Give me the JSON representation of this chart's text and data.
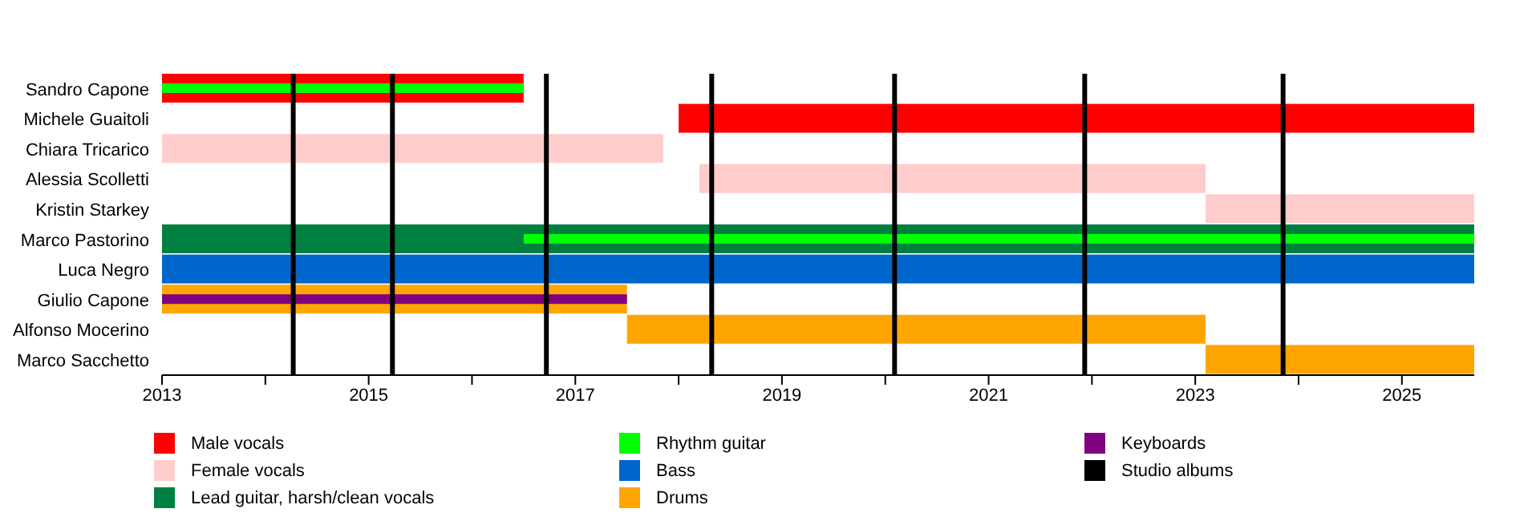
{
  "chart_data": {
    "type": "bar",
    "orientation": "horizontal",
    "categories": [
      "Sandro Capone",
      "Michele Guaitoli",
      "Chiara Tricarico",
      "Alessia Scolletti",
      "Kristin Starkey",
      "Marco Pastorino",
      "Luca Negro",
      "Giulio Capone",
      "Alfonso Mocerino",
      "Marco Sacchetto"
    ],
    "series": [
      {
        "name": "Male vocals",
        "color": "#ff0000",
        "base": [
          2013,
          2018,
          null,
          null,
          null,
          null,
          null,
          null,
          null,
          null
        ],
        "values": [
          3.5,
          7.7,
          null,
          null,
          null,
          null,
          null,
          null,
          null,
          null
        ]
      },
      {
        "name": "Female vocals",
        "color": "#ffcccc",
        "base": [
          null,
          null,
          2013,
          2018.2,
          2023.1,
          null,
          null,
          null,
          null,
          null
        ],
        "values": [
          null,
          null,
          4.85,
          4.9,
          2.6,
          null,
          null,
          null,
          null,
          null
        ]
      },
      {
        "name": "Lead guitar, harsh/clean vocals",
        "color": "#008040",
        "base": [
          null,
          null,
          null,
          null,
          null,
          2013,
          null,
          null,
          null,
          null
        ],
        "values": [
          null,
          null,
          null,
          null,
          null,
          12.7,
          null,
          null,
          null,
          null
        ]
      },
      {
        "name": "Rhythm guitar",
        "color": "#00ff00",
        "base": [
          2013,
          null,
          null,
          null,
          null,
          2016.5,
          null,
          null,
          null,
          null
        ],
        "values": [
          3.5,
          null,
          null,
          null,
          null,
          9.2,
          null,
          null,
          null,
          null
        ]
      },
      {
        "name": "Bass",
        "color": "#0066cc",
        "base": [
          null,
          null,
          null,
          null,
          null,
          null,
          2013,
          null,
          null,
          null
        ],
        "values": [
          null,
          null,
          null,
          null,
          null,
          null,
          12.7,
          null,
          null,
          null
        ]
      },
      {
        "name": "Drums",
        "color": "#ffa500",
        "base": [
          null,
          null,
          null,
          null,
          null,
          null,
          null,
          2013,
          2017.5,
          2023.1
        ],
        "values": [
          null,
          null,
          null,
          null,
          null,
          null,
          null,
          4.5,
          5.6,
          2.6
        ]
      },
      {
        "name": "Keyboards",
        "color": "#800080",
        "base": [
          null,
          null,
          null,
          null,
          null,
          null,
          null,
          2013,
          null,
          null
        ],
        "values": [
          null,
          null,
          null,
          null,
          null,
          null,
          null,
          4.5,
          null,
          null
        ]
      }
    ],
    "ref_lines": [
      {
        "axis": "x",
        "value": 2014.27,
        "label": "Studio albums",
        "color": "#000000"
      },
      {
        "axis": "x",
        "value": 2015.23,
        "color": "#000000"
      },
      {
        "axis": "x",
        "value": 2016.72,
        "color": "#000000"
      },
      {
        "axis": "x",
        "value": 2018.32,
        "color": "#000000"
      },
      {
        "axis": "x",
        "value": 2020.09,
        "color": "#000000"
      },
      {
        "axis": "x",
        "value": 2021.93,
        "color": "#000000"
      },
      {
        "axis": "x",
        "value": 2023.85,
        "color": "#000000"
      }
    ],
    "xlim": [
      2013,
      2025.7
    ],
    "xticks": [
      2013,
      {
        "value": 2014,
        "label": null
      },
      2015,
      {
        "value": 2016,
        "label": null
      },
      2017,
      {
        "value": 2018,
        "label": null
      },
      2019,
      {
        "value": 2020,
        "label": null
      },
      2021,
      {
        "value": 2022,
        "label": null
      },
      2023,
      {
        "value": 2024,
        "label": null
      },
      2025
    ],
    "legend": "bottom"
  }
}
